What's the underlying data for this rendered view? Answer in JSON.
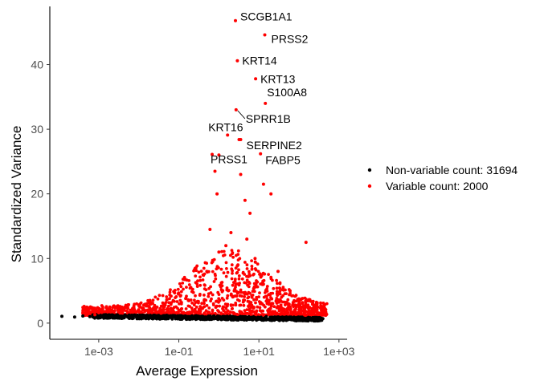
{
  "chart_data": {
    "type": "scatter",
    "title": "",
    "xlabel": "Average Expression",
    "ylabel": "Standardized Variance",
    "x_scale": "log10",
    "xlim": [
      6e-05,
      1600
    ],
    "ylim": [
      -2.5,
      49
    ],
    "x_ticks": [
      0.001,
      0.1,
      10,
      1000
    ],
    "x_tick_labels": [
      "1e-03",
      "1e-01",
      "1e+01",
      "1e+03"
    ],
    "y_ticks": [
      0,
      10,
      20,
      30,
      40
    ],
    "y_tick_labels": [
      "0",
      "10",
      "20",
      "30",
      "40"
    ],
    "grid": false,
    "legend_position": "right",
    "series": [
      {
        "name": "Non-variable count: 31694",
        "color": "#000000",
        "points": [
          [
            0.00012,
            1.05
          ],
          [
            0.00025,
            0.95
          ],
          [
            0.0004,
            1.1
          ],
          [
            0.0006,
            1.0
          ],
          [
            0.001,
            1.0
          ],
          [
            0.002,
            0.95
          ],
          [
            0.005,
            1.0
          ],
          [
            0.01,
            0.95
          ],
          [
            0.03,
            0.9
          ],
          [
            0.1,
            0.85
          ],
          [
            0.3,
            0.8
          ],
          [
            1,
            0.75
          ],
          [
            3,
            0.7
          ],
          [
            10,
            0.65
          ],
          [
            30,
            0.6
          ],
          [
            80,
            0.55
          ],
          [
            150,
            0.55
          ],
          [
            250,
            0.7
          ],
          [
            300,
            0.8
          ]
        ]
      },
      {
        "name": "Variable count: 2000",
        "color": "#ff0000",
        "points": [
          [
            0.0008,
            1.3
          ],
          [
            0.001,
            1.6
          ],
          [
            0.0015,
            1.8
          ],
          [
            0.003,
            2.0
          ],
          [
            0.005,
            2.4
          ],
          [
            0.01,
            2.8
          ],
          [
            0.02,
            3.2
          ],
          [
            0.05,
            3.6
          ],
          [
            0.1,
            4.5
          ],
          [
            0.2,
            5.5
          ],
          [
            0.5,
            8.0
          ],
          [
            0.7,
            9.5
          ],
          [
            1,
            11.0
          ],
          [
            1.5,
            12.0
          ],
          [
            2,
            14.0
          ],
          [
            3,
            9.0
          ],
          [
            5,
            13.0
          ],
          [
            8,
            10.0
          ],
          [
            12,
            6.0
          ],
          [
            20,
            20.0
          ],
          [
            30,
            8.0
          ],
          [
            60,
            5.0
          ],
          [
            100,
            3.0
          ],
          [
            150,
            12.5
          ],
          [
            250,
            2.0
          ],
          [
            400,
            1.6
          ],
          [
            0.6,
            14.5
          ],
          [
            0.8,
            23.5
          ],
          [
            0.9,
            20.0
          ],
          [
            1.0,
            26.0
          ],
          [
            3.2,
            28.4
          ],
          [
            3.5,
            23.0
          ],
          [
            4.5,
            19.0
          ],
          [
            6,
            17.0
          ],
          [
            13,
            21.5
          ]
        ]
      }
    ],
    "labeled_points": [
      {
        "label": "SCGB1A1",
        "x": 2.6,
        "y": 46.8
      },
      {
        "label": "PRSS2",
        "x": 14,
        "y": 44.6
      },
      {
        "label": "KRT14",
        "x": 2.9,
        "y": 40.6
      },
      {
        "label": "KRT13",
        "x": 8.3,
        "y": 37.8
      },
      {
        "label": "S100A8",
        "x": 14.5,
        "y": 34.0
      },
      {
        "label": "SPRR1B",
        "x": 2.7,
        "y": 33.0
      },
      {
        "label": "KRT16",
        "x": 1.65,
        "y": 29.1
      },
      {
        "label": "SERPINE2",
        "x": 3.5,
        "y": 28.4
      },
      {
        "label": "PRSS1",
        "x": 0.68,
        "y": 26.1
      },
      {
        "label": "FABP5",
        "x": 11.0,
        "y": 26.2
      }
    ]
  },
  "legend": {
    "items": [
      {
        "label": "Non-variable count: 31694",
        "color": "#000000"
      },
      {
        "label": "Variable count: 2000",
        "color": "#ff0000"
      }
    ]
  }
}
